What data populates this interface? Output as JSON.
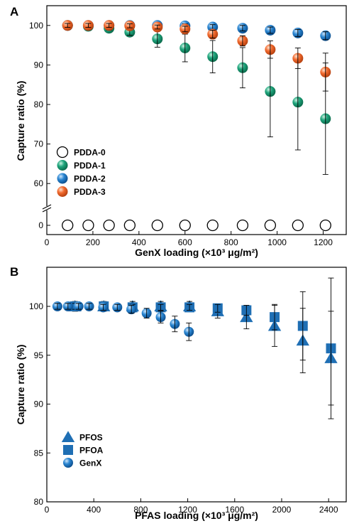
{
  "chart_data": [
    {
      "panel": "A",
      "type": "scatter",
      "xlabel": "GenX loading (×10³ μg/m²)",
      "ylabel": "Capture ratio (%)",
      "xlim": [
        0,
        1300
      ],
      "ylim_upper": [
        55,
        105
      ],
      "ylim_lower": [
        -2,
        2
      ],
      "axis_break": true,
      "x_ticks": [
        "0",
        "200",
        "400",
        "600",
        "800",
        "1000",
        "1200"
      ],
      "y_ticks_upper": [
        "60",
        "70",
        "80",
        "90",
        "100"
      ],
      "y_ticks_lower": [
        "0"
      ],
      "legend_position": "bottom-left",
      "series": [
        {
          "name": "PDDA-0",
          "marker": "open-circle",
          "color": "#ffffff",
          "x": [
            90,
            180,
            270,
            360,
            480,
            600,
            720,
            850,
            970,
            1090,
            1210
          ],
          "y": [
            0,
            0,
            0,
            0,
            0,
            0,
            0,
            0,
            0,
            0,
            0
          ],
          "err": [
            0,
            0,
            0,
            0,
            0,
            0,
            0,
            0,
            0,
            0,
            0
          ]
        },
        {
          "name": "PDDA-1",
          "marker": "filled-circle",
          "color": "#1aa37a",
          "x": [
            90,
            180,
            270,
            360,
            480,
            600,
            720,
            850,
            970,
            1090,
            1210
          ],
          "y": [
            100,
            99.8,
            99.3,
            98.3,
            96.6,
            94.3,
            92.1,
            89.3,
            83.3,
            80.6,
            76.4
          ],
          "err": [
            0.5,
            0.5,
            0.5,
            0.8,
            2.1,
            3.5,
            4.1,
            5.1,
            11.5,
            12.1,
            14.1
          ]
        },
        {
          "name": "PDDA-2",
          "marker": "filled-circle",
          "color": "#1f77c4",
          "x": [
            90,
            180,
            270,
            360,
            480,
            600,
            720,
            850,
            970,
            1090,
            1210
          ],
          "y": [
            100,
            100,
            100,
            100,
            100,
            99.9,
            99.6,
            99.3,
            98.8,
            98.1,
            97.4
          ],
          "err": [
            0.5,
            0.5,
            0.5,
            0.5,
            0.5,
            0.5,
            0.6,
            0.7,
            0.8,
            0.9,
            1.0
          ]
        },
        {
          "name": "PDDA-3",
          "marker": "filled-circle",
          "color": "#f26a2e",
          "x": [
            90,
            180,
            270,
            360,
            480,
            600,
            720,
            850,
            970,
            1090,
            1210
          ],
          "y": [
            100,
            100,
            100,
            99.9,
            99.6,
            99.1,
            97.8,
            96.1,
            93.9,
            91.7,
            88.2
          ],
          "err": [
            0.5,
            0.5,
            0.5,
            0.5,
            0.5,
            0.7,
            1.0,
            1.3,
            2.2,
            2.6,
            4.8
          ]
        }
      ]
    },
    {
      "panel": "B",
      "type": "scatter",
      "xlabel": "PFAS loading (×10³ μg/m²)",
      "ylabel": "Capture ratio (%)",
      "xlim": [
        0,
        2550
      ],
      "ylim": [
        80,
        104
      ],
      "x_ticks": [
        "0",
        "400",
        "800",
        "1200",
        "1600",
        "2000",
        "2400"
      ],
      "y_ticks": [
        "80",
        "85",
        "90",
        "95",
        "100"
      ],
      "legend_position": "bottom-left",
      "series": [
        {
          "name": "PFOS",
          "marker": "triangle",
          "color": "#1f6fb4",
          "x": [
            240,
            485,
            730,
            970,
            1215,
            1455,
            1700,
            1940,
            2180,
            2420
          ],
          "y": [
            100,
            100,
            100,
            100,
            100,
            99.5,
            98.9,
            98.0,
            96.5,
            94.7
          ],
          "err": [
            0.5,
            0.5,
            0.5,
            0.5,
            0.5,
            0.7,
            1.2,
            2.1,
            3.3,
            4.8
          ]
        },
        {
          "name": "PFOA",
          "marker": "square",
          "color": "#1f6fb4",
          "x": [
            240,
            485,
            730,
            970,
            1215,
            1455,
            1700,
            1940,
            2180,
            2420
          ],
          "y": [
            100,
            100,
            99.9,
            99.9,
            99.9,
            99.8,
            99.6,
            98.9,
            98.0,
            95.7
          ],
          "err": [
            0.3,
            0.3,
            0.3,
            0.3,
            0.3,
            0.4,
            0.5,
            1.3,
            3.5,
            7.2
          ]
        },
        {
          "name": "GenX",
          "marker": "sphere",
          "color": "#2b86d1",
          "x": [
            90,
            180,
            270,
            360,
            480,
            600,
            720,
            850,
            970,
            1090,
            1210
          ],
          "y": [
            100,
            100,
            100,
            100,
            99.9,
            99.9,
            99.7,
            99.3,
            98.9,
            98.2,
            97.4
          ],
          "err": [
            0.3,
            0.3,
            0.3,
            0.3,
            0.3,
            0.3,
            0.4,
            0.5,
            0.6,
            0.8,
            0.9
          ]
        }
      ]
    }
  ]
}
